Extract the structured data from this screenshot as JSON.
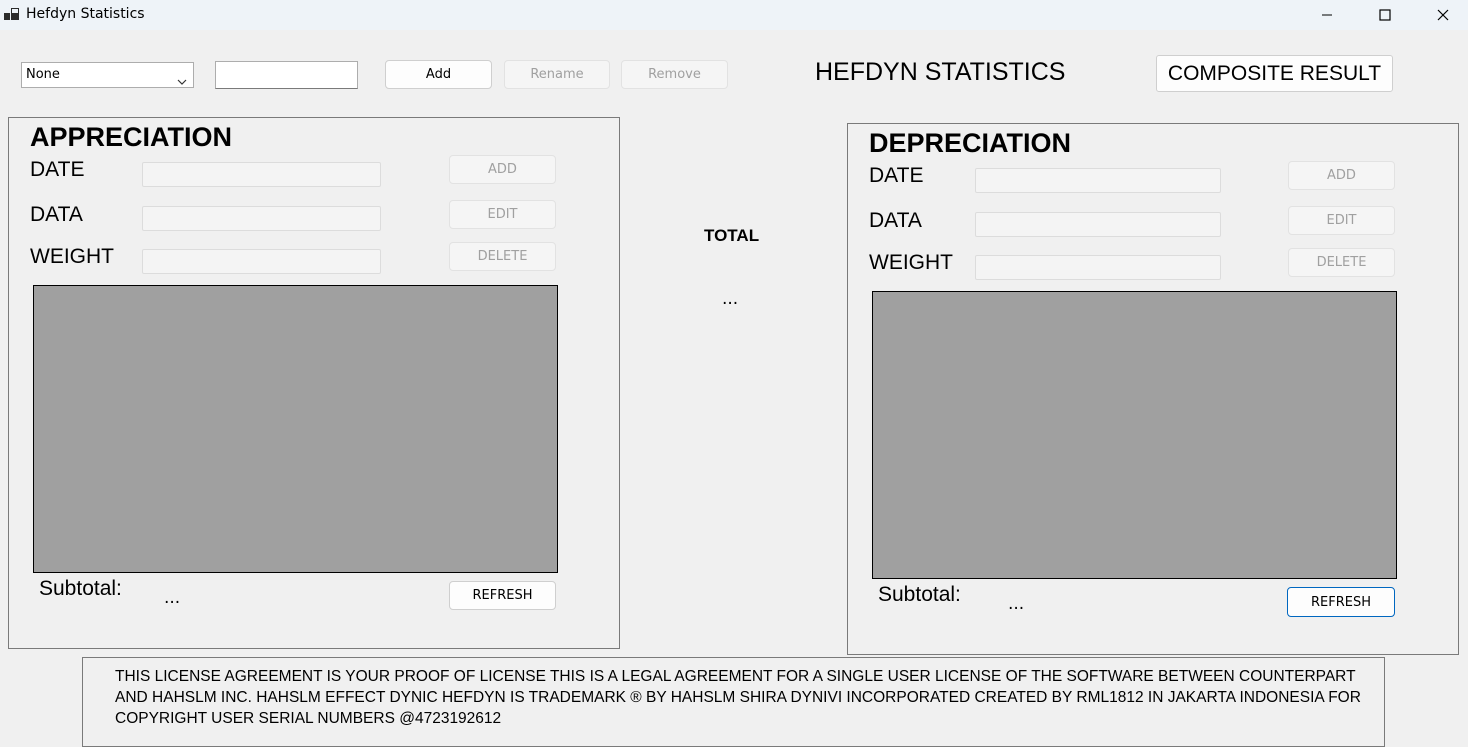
{
  "window": {
    "title": "Hefdyn Statistics",
    "icons": [
      "app-icon",
      "minimize-icon",
      "maximize-icon",
      "close-icon"
    ]
  },
  "toolbar": {
    "combo_value": "None",
    "text_value": "",
    "add_label": "Add",
    "rename_label": "Rename",
    "remove_label": "Remove"
  },
  "header": {
    "title": "HEFDYN STATISTICS",
    "composite_label": "COMPOSITE RESULT"
  },
  "appreciation": {
    "title": "APPRECIATION",
    "date_label": "DATE",
    "data_label": "DATA",
    "weight_label": "WEIGHT",
    "add_label": "ADD",
    "edit_label": "EDIT",
    "delete_label": "DELETE",
    "subtotal_label": "Subtotal:",
    "subtotal_value": "...",
    "refresh_label": "REFRESH"
  },
  "depreciation": {
    "title": "DEPRECIATION",
    "date_label": "DATE",
    "data_label": "DATA",
    "weight_label": "WEIGHT",
    "add_label": "ADD",
    "edit_label": "EDIT",
    "delete_label": "DELETE",
    "subtotal_label": "Subtotal:",
    "subtotal_value": "...",
    "refresh_label": "REFRESH"
  },
  "total": {
    "label": "TOTAL",
    "value": "..."
  },
  "license": {
    "text": "THIS LICENSE AGREEMENT IS YOUR PROOF OF LICENSE THIS IS A LEGAL AGREEMENT FOR A SINGLE USER LICENSE OF THE SOFTWARE BETWEEN COUNTERPART AND HAHSLM INC.  HAHSLM EFFECT DYNIC HEFDYN IS TRADEMARK ® BY HAHSLM SHIRA DYNIVI INCORPORATED CREATED BY RML1812 IN JAKARTA INDONESIA FOR COPYRIGHT USER SERIAL NUMBERS @4723192612"
  },
  "colors": {
    "window_bg": "#f0f0f0",
    "titlebar_bg": "#eef3f8",
    "grid_bg": "#a0a0a0",
    "focus_border": "#0067c0",
    "disabled_text": "#a0a0a0"
  }
}
